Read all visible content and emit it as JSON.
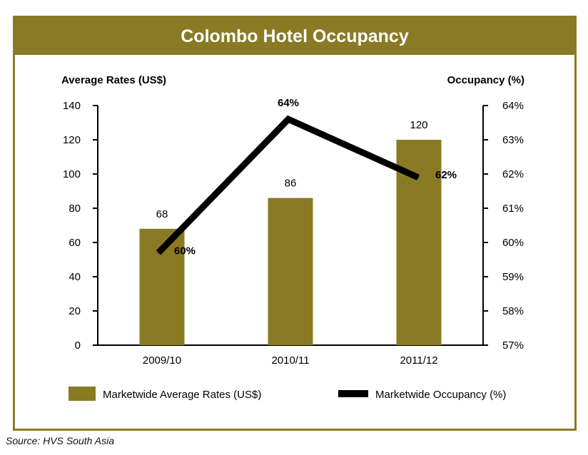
{
  "chart_data": {
    "type": "bar",
    "title": "Colombo Hotel Occupancy",
    "categories": [
      "2009/10",
      "2010/11",
      "2011/12"
    ],
    "series": [
      {
        "name": "Marketwide Average Rates (US$)",
        "type": "bar",
        "axis": "left",
        "values": [
          68,
          86,
          120
        ],
        "labels": [
          "68",
          "86",
          "120"
        ],
        "color": "#8a7a23"
      },
      {
        "name": "Marketwide Occupancy (%)",
        "type": "line",
        "axis": "right",
        "values": [
          59.7,
          63.6,
          61.9
        ],
        "labels": [
          "60%",
          "64%",
          "62%"
        ],
        "color": "#000000"
      }
    ],
    "y_left": {
      "label": "Average Rates (US$)",
      "range": [
        0,
        140
      ],
      "ticks": [
        "0",
        "20",
        "40",
        "60",
        "80",
        "100",
        "120",
        "140"
      ]
    },
    "y_right": {
      "label": "Occupancy (%)",
      "range": [
        57,
        64
      ],
      "ticks": [
        "57%",
        "58%",
        "59%",
        "60%",
        "61%",
        "62%",
        "63%",
        "64%"
      ]
    },
    "grid": false,
    "legend_position": "bottom"
  },
  "source": "Source: HVS South Asia"
}
